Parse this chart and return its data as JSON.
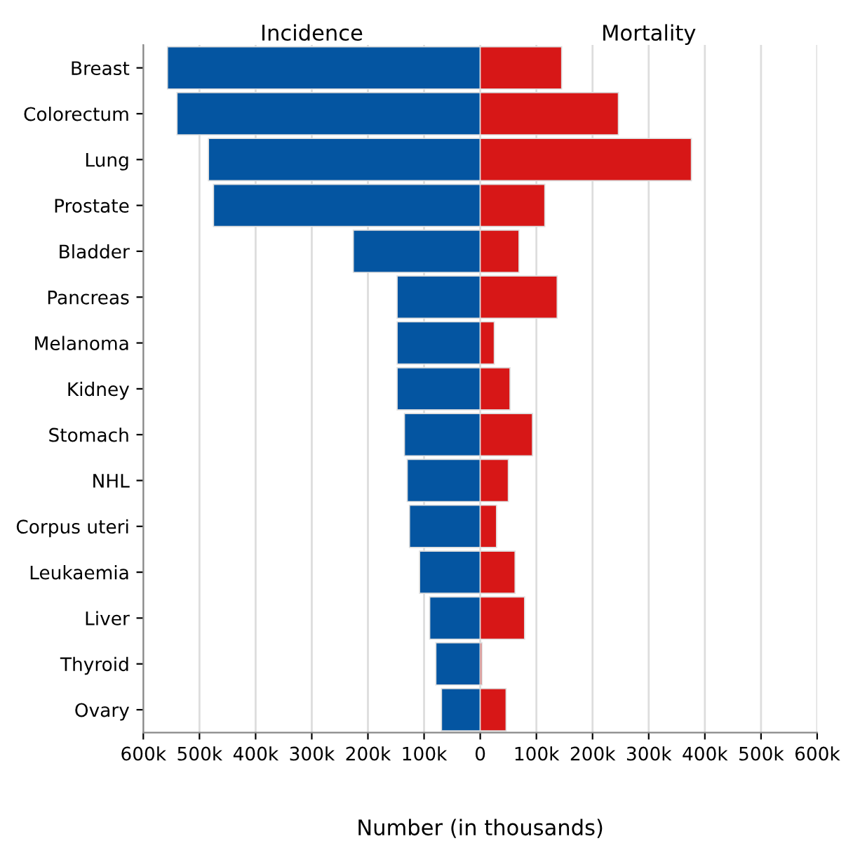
{
  "chart_data": {
    "type": "bar",
    "orientation": "horizontal",
    "stacked": true,
    "xlabel": "Number (in thousands)",
    "categories": [
      "Breast",
      "Colorectum",
      "Lung",
      "Prostate",
      "Bladder",
      "Pancreas",
      "Melanoma",
      "Kidney",
      "Stomach",
      "NHL",
      "Corpus uteri",
      "Leukaemia",
      "Liver",
      "Thyroid",
      "Ovary"
    ],
    "series": [
      {
        "name": "Incidence",
        "color": "#0455a1",
        "values": [
          -557000,
          -540000,
          -484000,
          -475000,
          -226000,
          -148000,
          -148000,
          -148000,
          -135000,
          -130000,
          -126000,
          -108000,
          -90000,
          -79000,
          -69000
        ]
      },
      {
        "name": "Mortality",
        "color": "#d71717",
        "values": [
          145000,
          246000,
          376000,
          115000,
          69000,
          137000,
          25000,
          53000,
          93000,
          50000,
          29000,
          62000,
          79000,
          3000,
          46000
        ]
      }
    ],
    "xlim": [
      -600000,
      600000
    ],
    "xticks": [
      {
        "value": -600000,
        "label": "600k"
      },
      {
        "value": -500000,
        "label": "500k"
      },
      {
        "value": -400000,
        "label": "400k"
      },
      {
        "value": -300000,
        "label": "300k"
      },
      {
        "value": -200000,
        "label": "200k"
      },
      {
        "value": -100000,
        "label": "100k"
      },
      0,
      {
        "value": 100000,
        "label": "100k"
      },
      {
        "value": 200000,
        "label": "200k"
      },
      {
        "value": 300000,
        "label": "300k"
      },
      {
        "value": 400000,
        "label": "400k"
      },
      {
        "value": 500000,
        "label": "500k"
      },
      {
        "value": 600000,
        "label": "600k"
      }
    ],
    "grid": "x",
    "legend": false
  }
}
